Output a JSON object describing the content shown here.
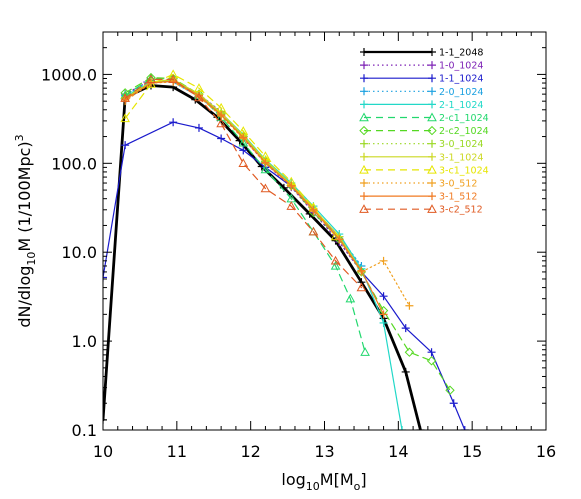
{
  "chart_data": {
    "type": "line",
    "title": "",
    "xlabel": "log₁₀M[Mₒ]",
    "xlabel_parts": {
      "base": "log",
      "sub1": "10",
      "mid": "M[M",
      "sub2": "o",
      "end": "]"
    },
    "ylabel": "dN/dlog₁₀M (1/100Mpc)³",
    "ylabel_parts": {
      "pre": "dN/dlog",
      "sub": "10",
      "mid": "M (1/100Mpc)",
      "sup": "3"
    },
    "y_scale": "log",
    "xlim": [
      10,
      16
    ],
    "ylim": [
      0.1,
      3000
    ],
    "x_ticks": [
      10,
      11,
      12,
      13,
      14,
      15,
      16
    ],
    "x_tick_labels": [
      "10",
      "11",
      "12",
      "13",
      "14",
      "15",
      "16"
    ],
    "y_ticks": [
      0.1,
      1,
      10,
      100,
      1000
    ],
    "y_tick_labels": [
      "0.1",
      "1.0",
      "10.0",
      "100.0",
      "1000.0"
    ],
    "legend_position": "top-right",
    "grid": false,
    "series": [
      {
        "name": "1-1_2048",
        "color": "#000000",
        "dash": "solid",
        "width": 2.8,
        "marker": "plus",
        "x": [
          10.0,
          10.3,
          10.65,
          10.95,
          11.25,
          11.55,
          11.85,
          12.15,
          12.45,
          12.8,
          13.15,
          13.5,
          13.8,
          14.1,
          14.3
        ],
        "y": [
          0.13,
          550,
          750,
          720,
          520,
          330,
          180,
          92,
          53,
          27,
          13.5,
          4.6,
          1.8,
          0.45,
          0.1
        ]
      },
      {
        "name": "1-0_1024",
        "color": "#7d22b5",
        "dash": "dot",
        "width": 1.2,
        "marker": "plus",
        "x": [
          10.3,
          10.6,
          10.95,
          11.3,
          11.6,
          11.9,
          12.2,
          12.55,
          12.85,
          13.2,
          13.5
        ],
        "y": [
          600,
          820,
          850,
          600,
          380,
          190,
          100,
          54,
          28,
          13,
          6
        ]
      },
      {
        "name": "1-1_1024",
        "color": "#1a1acc",
        "dash": "solid",
        "width": 1.2,
        "marker": "plus",
        "x": [
          10.0,
          10.3,
          10.95,
          11.3,
          11.6,
          11.9,
          12.2,
          12.55,
          12.85,
          13.2,
          13.5,
          13.8,
          14.1,
          14.45,
          14.75,
          14.9
        ],
        "y": [
          5.2,
          160,
          290,
          250,
          190,
          140,
          90,
          55,
          30,
          15,
          6,
          3.2,
          1.4,
          0.75,
          0.2,
          0.1
        ]
      },
      {
        "name": "2-0_1024",
        "color": "#1aa0e0",
        "dash": "dot",
        "width": 1.2,
        "marker": "plus",
        "x": [
          10.3,
          10.65,
          10.95,
          11.3,
          11.6,
          11.9,
          12.2,
          12.55,
          12.85,
          13.2,
          13.5
        ],
        "y": [
          580,
          850,
          820,
          560,
          350,
          200,
          105,
          58,
          31,
          15,
          7
        ]
      },
      {
        "name": "2-1_1024",
        "color": "#22d8c8",
        "dash": "solid",
        "width": 1.2,
        "marker": "plus",
        "x": [
          10.3,
          10.65,
          10.95,
          11.3,
          11.6,
          11.9,
          12.2,
          12.55,
          12.85,
          13.2,
          13.5,
          13.8,
          14.05
        ],
        "y": [
          560,
          820,
          860,
          600,
          370,
          210,
          110,
          60,
          33,
          16,
          6.5,
          1.6,
          0.1
        ]
      },
      {
        "name": "2-c1_1024",
        "color": "#22d86e",
        "dash": "dash",
        "width": 1.2,
        "marker": "triangle",
        "x": [
          10.3,
          10.65,
          10.95,
          11.3,
          11.6,
          11.9,
          12.2,
          12.55,
          12.85,
          13.15,
          13.35,
          13.55
        ],
        "y": [
          580,
          900,
          880,
          580,
          330,
          170,
          85,
          40,
          17,
          7,
          3,
          0.75
        ]
      },
      {
        "name": "2-c2_1024",
        "color": "#55d822",
        "dash": "dash",
        "width": 1.2,
        "marker": "diamond",
        "x": [
          10.3,
          10.65,
          10.95,
          11.3,
          11.6,
          11.9,
          12.2,
          12.55,
          12.85,
          13.2,
          13.5,
          13.8,
          14.15,
          14.45,
          14.7
        ],
        "y": [
          620,
          920,
          900,
          600,
          360,
          200,
          105,
          56,
          28,
          14,
          6,
          2.2,
          0.75,
          0.6,
          0.28
        ]
      },
      {
        "name": "3-0_1024",
        "color": "#9ad822",
        "dash": "dot",
        "width": 1.2,
        "marker": "plus",
        "x": [
          10.3,
          10.65,
          10.95,
          11.3,
          11.6,
          11.9,
          12.2,
          12.55,
          12.85,
          13.2,
          13.5
        ],
        "y": [
          550,
          820,
          860,
          580,
          360,
          200,
          105,
          57,
          30,
          14,
          6
        ]
      },
      {
        "name": "3-1_1024",
        "color": "#ccd822",
        "dash": "solid",
        "width": 1.2,
        "marker": "plus",
        "x": [
          10.3,
          10.65,
          10.95,
          11.3,
          11.6,
          11.9,
          12.2,
          12.55,
          12.85,
          13.2,
          13.5
        ],
        "y": [
          540,
          820,
          880,
          600,
          370,
          205,
          108,
          58,
          31,
          15,
          6.2
        ]
      },
      {
        "name": "3-c1_1024",
        "color": "#e6e600",
        "dash": "dash",
        "width": 1.2,
        "marker": "triangle",
        "x": [
          10.3,
          10.65,
          10.95,
          11.3,
          11.6,
          11.9,
          12.2,
          12.55,
          12.85,
          13.15
        ],
        "y": [
          320,
          780,
          1000,
          700,
          420,
          230,
          120,
          62,
          32,
          15
        ]
      },
      {
        "name": "3-0_512",
        "color": "#f0a020",
        "dash": "dot",
        "width": 1.2,
        "marker": "plus",
        "x": [
          10.3,
          10.65,
          10.95,
          11.3,
          11.6,
          11.9,
          12.2,
          12.55,
          12.85,
          13.2,
          13.5,
          13.8,
          14.15
        ],
        "y": [
          500,
          800,
          820,
          560,
          340,
          190,
          100,
          55,
          29,
          14,
          6,
          8,
          2.5
        ]
      },
      {
        "name": "3-1_512",
        "color": "#f07a22",
        "dash": "solid",
        "width": 1.2,
        "marker": "plus",
        "x": [
          10.3,
          10.65,
          10.95,
          11.3,
          11.6,
          11.9,
          12.2,
          12.55,
          12.85,
          13.2,
          13.5,
          13.8
        ],
        "y": [
          520,
          800,
          840,
          580,
          350,
          195,
          102,
          56,
          30,
          14,
          6.2,
          2.0
        ]
      },
      {
        "name": "3-c2_512",
        "color": "#e05a22",
        "dash": "dash",
        "width": 1.2,
        "marker": "triangle",
        "x": [
          10.3,
          10.65,
          10.95,
          11.3,
          11.6,
          11.9,
          12.2,
          12.55,
          12.85,
          13.15,
          13.5
        ],
        "y": [
          540,
          880,
          880,
          550,
          280,
          100,
          52,
          33,
          17,
          8,
          4
        ]
      }
    ]
  }
}
